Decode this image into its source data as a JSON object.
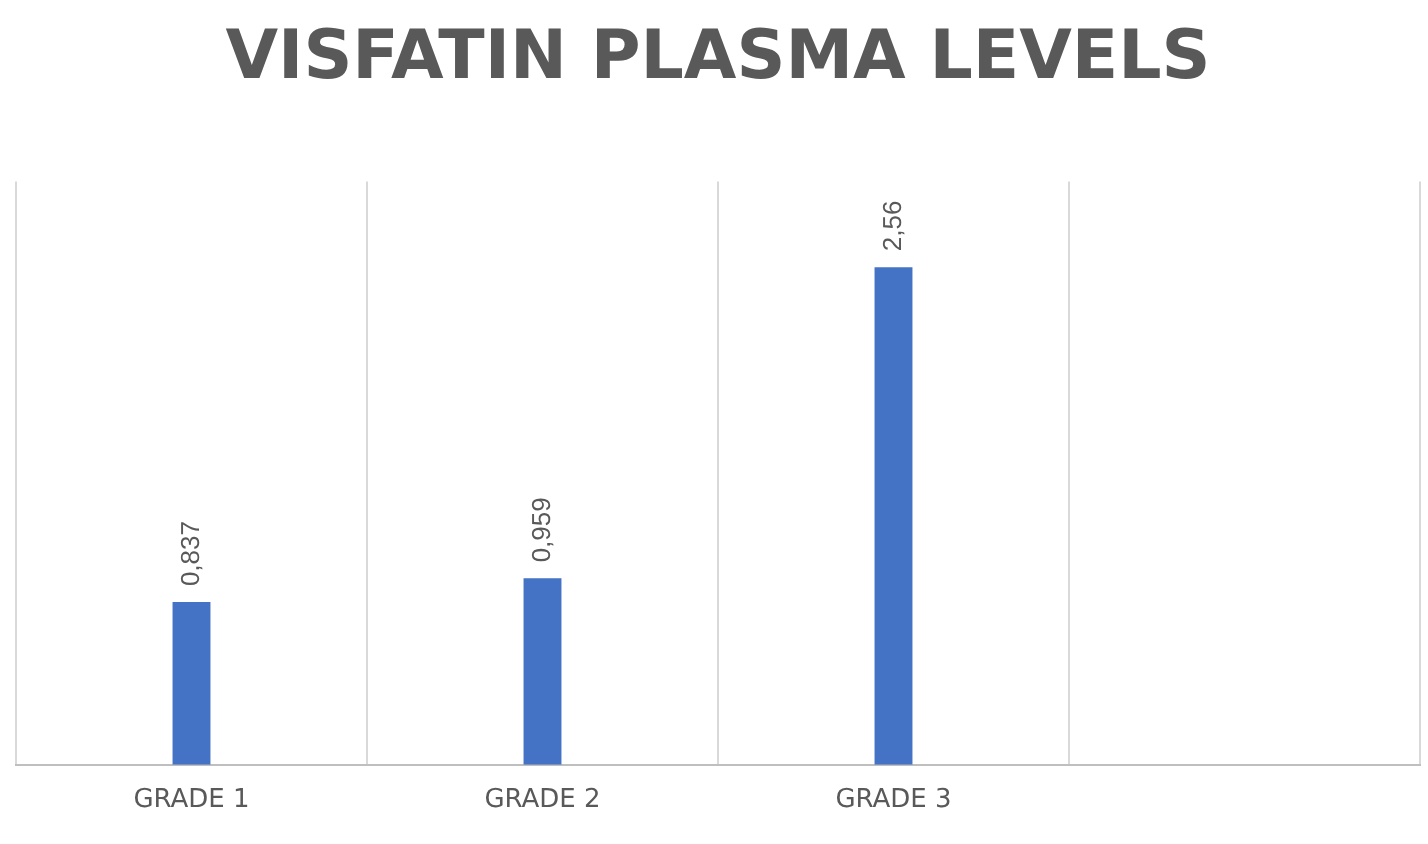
{
  "chart_data": {
    "type": "bar",
    "title": "VISFATIN PLASMA LEVELS",
    "categories": [
      "GRADE 1",
      "GRADE 2",
      "GRADE 3",
      null
    ],
    "series": [
      {
        "color": "#4472c4",
        "values": [
          0.837,
          0.959,
          2.56,
          null
        ],
        "value_labels": [
          "0,837",
          "0,959",
          "2,56",
          null
        ]
      }
    ],
    "grid": "x",
    "legend": false
  }
}
